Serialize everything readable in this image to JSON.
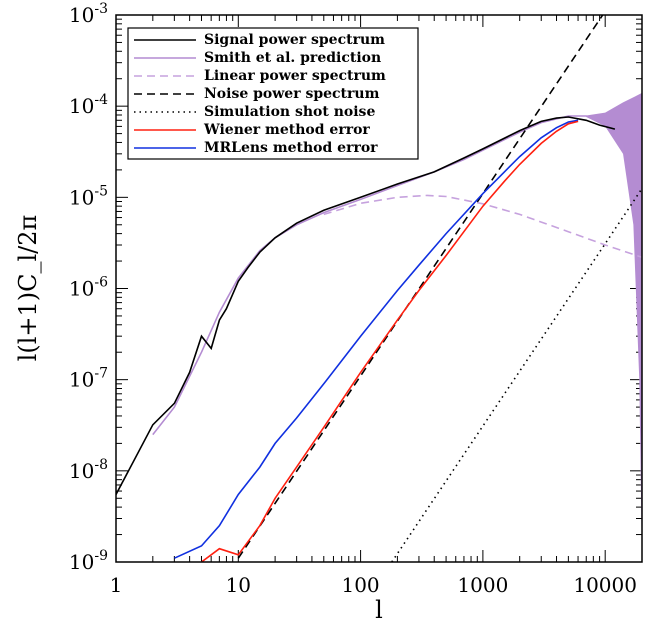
{
  "chart_data": {
    "type": "line",
    "xlabel": "l",
    "ylabel": "l(l+1)C_l/2π",
    "xscale": "log",
    "yscale": "log",
    "xlim": [
      1,
      20000
    ],
    "ylim": [
      1e-09,
      0.001
    ],
    "x_ticks": [
      {
        "value": 1,
        "label": "1"
      },
      {
        "value": 10,
        "label": "10"
      },
      {
        "value": 100,
        "label": "100"
      },
      {
        "value": 1000,
        "label": "1000"
      },
      {
        "value": 10000,
        "label": "10000"
      }
    ],
    "y_ticks": [
      {
        "value": 1e-09,
        "base": "10",
        "exp": "-9"
      },
      {
        "value": 1e-08,
        "base": "10",
        "exp": "-8"
      },
      {
        "value": 1e-07,
        "base": "10",
        "exp": "-7"
      },
      {
        "value": 1e-06,
        "base": "10",
        "exp": "-6"
      },
      {
        "value": 1e-05,
        "base": "10",
        "exp": "-5"
      },
      {
        "value": 0.0001,
        "base": "10",
        "exp": "-4"
      },
      {
        "value": 0.001,
        "base": "10",
        "exp": "-3"
      }
    ],
    "legend_position": "top-left",
    "series": [
      {
        "name": "Signal power spectrum",
        "color": "#000000",
        "dash": "solid",
        "points": [
          [
            1,
            5.5e-09
          ],
          [
            2,
            3.2e-08
          ],
          [
            3,
            5.5e-08
          ],
          [
            4,
            1.2e-07
          ],
          [
            5,
            3e-07
          ],
          [
            6,
            2.2e-07
          ],
          [
            7,
            4.5e-07
          ],
          [
            8,
            6e-07
          ],
          [
            10,
            1.2e-06
          ],
          [
            12,
            1.7e-06
          ],
          [
            15,
            2.5e-06
          ],
          [
            20,
            3.6e-06
          ],
          [
            30,
            5.2e-06
          ],
          [
            50,
            7.2e-06
          ],
          [
            100,
            1e-05
          ],
          [
            200,
            1.4e-05
          ],
          [
            400,
            1.9e-05
          ],
          [
            700,
            2.7e-05
          ],
          [
            1000,
            3.4e-05
          ],
          [
            2000,
            5.4e-05
          ],
          [
            3000,
            6.8e-05
          ],
          [
            4000,
            7.4e-05
          ],
          [
            5000,
            7.6e-05
          ],
          [
            7000,
            7e-05
          ],
          [
            9000,
            6.2e-05
          ],
          [
            12000,
            5.6e-05
          ]
        ]
      },
      {
        "name": "Smith et al. prediction",
        "color": "#b48cd2",
        "dash": "solid",
        "points": [
          [
            2,
            2.5e-08
          ],
          [
            3,
            5e-08
          ],
          [
            5,
            2e-07
          ],
          [
            7,
            5.5e-07
          ],
          [
            10,
            1.3e-06
          ],
          [
            15,
            2.6e-06
          ],
          [
            20,
            3.6e-06
          ],
          [
            30,
            5e-06
          ],
          [
            50,
            6.8e-06
          ],
          [
            100,
            9.5e-06
          ],
          [
            200,
            1.35e-05
          ],
          [
            400,
            1.9e-05
          ],
          [
            700,
            2.6e-05
          ],
          [
            1000,
            3.3e-05
          ],
          [
            2000,
            5.2e-05
          ],
          [
            3000,
            6.6e-05
          ],
          [
            5000,
            7.8e-05
          ],
          [
            7000,
            7.8e-05
          ],
          [
            10000,
            6.8e-05
          ],
          [
            15000,
            6e-05
          ],
          [
            20000,
            5.5e-05
          ]
        ]
      },
      {
        "name": "Linear power spectrum",
        "color": "#c6a2de",
        "dash": "dashed",
        "points": [
          [
            50,
            6.5e-06
          ],
          [
            100,
            8.6e-06
          ],
          [
            200,
            1e-05
          ],
          [
            350,
            1.05e-05
          ],
          [
            500,
            1.02e-05
          ],
          [
            1000,
            8.5e-06
          ],
          [
            2000,
            6.5e-06
          ],
          [
            5000,
            4.2e-06
          ],
          [
            10000,
            3e-06
          ],
          [
            20000,
            2.2e-06
          ]
        ]
      },
      {
        "name": "Noise power spectrum",
        "color": "#000000",
        "dash": "dashed",
        "points": [
          [
            10,
            1.1e-09
          ],
          [
            100,
            1.1e-07
          ],
          [
            1000,
            1.1e-05
          ],
          [
            10000,
            0.0011
          ]
        ]
      },
      {
        "name": "Simulation shot noise",
        "color": "#000000",
        "dash": "dotted",
        "points": [
          [
            180,
            1e-09
          ],
          [
            1000,
            3.1e-08
          ],
          [
            10000,
            3.1e-06
          ],
          [
            20000,
            1.25e-05
          ]
        ]
      },
      {
        "name": "Wiener method error",
        "color": "#ff2010",
        "dash": "solid",
        "points": [
          [
            5,
            1e-09
          ],
          [
            7,
            1.4e-09
          ],
          [
            10,
            1.2e-09
          ],
          [
            15,
            2.5e-09
          ],
          [
            20,
            5e-09
          ],
          [
            30,
            1.1e-08
          ],
          [
            50,
            3e-08
          ],
          [
            100,
            1.2e-07
          ],
          [
            200,
            4.5e-07
          ],
          [
            300,
            9.5e-07
          ],
          [
            500,
            2.3e-06
          ],
          [
            1000,
            8e-06
          ],
          [
            1500,
            1.5e-05
          ],
          [
            2000,
            2.3e-05
          ],
          [
            3000,
            3.9e-05
          ],
          [
            4000,
            5.3e-05
          ],
          [
            5000,
            6.4e-05
          ],
          [
            6000,
            6.8e-05
          ]
        ]
      },
      {
        "name": "MRLens method error",
        "color": "#1030e0",
        "dash": "solid",
        "points": [
          [
            3,
            1.1e-09
          ],
          [
            5,
            1.5e-09
          ],
          [
            7,
            2.5e-09
          ],
          [
            10,
            5.5e-09
          ],
          [
            15,
            1.1e-08
          ],
          [
            20,
            2e-08
          ],
          [
            30,
            3.8e-08
          ],
          [
            50,
            9e-08
          ],
          [
            100,
            3e-07
          ],
          [
            200,
            9.5e-07
          ],
          [
            300,
            1.8e-06
          ],
          [
            500,
            4e-06
          ],
          [
            1000,
            1.1e-05
          ],
          [
            1500,
            1.9e-05
          ],
          [
            2000,
            2.8e-05
          ],
          [
            3000,
            4.5e-05
          ],
          [
            4000,
            5.8e-05
          ],
          [
            5000,
            6.7e-05
          ],
          [
            6000,
            7e-05
          ]
        ]
      }
    ],
    "bands": [
      {
        "series": "Smith et al. prediction",
        "color": "#b48cd2",
        "upper": [
          [
            7000,
            7.9e-05
          ],
          [
            10000,
            8.5e-05
          ],
          [
            14000,
            0.00011
          ],
          [
            18000,
            0.00013
          ],
          [
            20000,
            0.00014
          ]
        ],
        "lower": [
          [
            7000,
            7.6e-05
          ],
          [
            10000,
            6e-05
          ],
          [
            14000,
            3e-05
          ],
          [
            17000,
            5e-06
          ],
          [
            19000,
            1e-07
          ],
          [
            20000,
            1e-09
          ]
        ]
      }
    ]
  }
}
